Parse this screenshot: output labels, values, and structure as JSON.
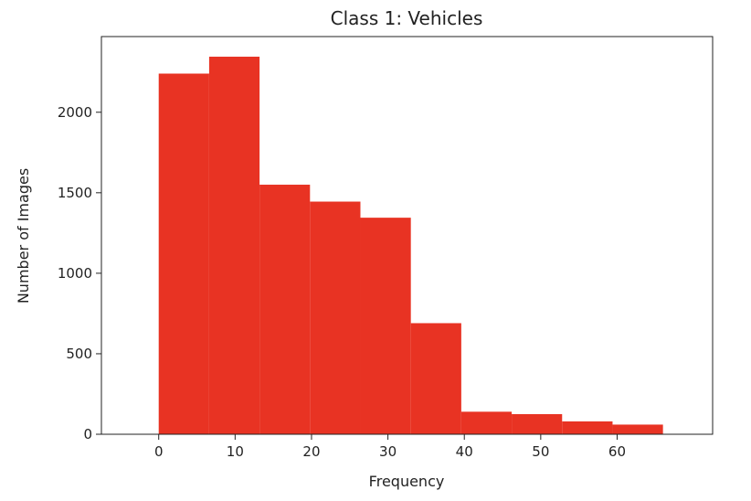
{
  "chart_data": {
    "type": "bar",
    "title": "Class 1: Vehicles",
    "xlabel": "Frequency",
    "ylabel": "Number of Images",
    "bin_edges": [
      0,
      6.6,
      13.2,
      19.8,
      26.4,
      33.0,
      39.6,
      46.2,
      52.8,
      59.4,
      66.0
    ],
    "values": [
      2240,
      2345,
      1550,
      1445,
      1345,
      690,
      140,
      125,
      80,
      60
    ],
    "xlim": [
      -7.5,
      72.5
    ],
    "ylim": [
      0,
      2470
    ],
    "xticks": [
      0,
      10,
      20,
      30,
      40,
      50,
      60
    ],
    "yticks": [
      0,
      500,
      1000,
      1500,
      2000
    ],
    "bar_color": "#e83323",
    "grid": false,
    "legend": "none"
  }
}
